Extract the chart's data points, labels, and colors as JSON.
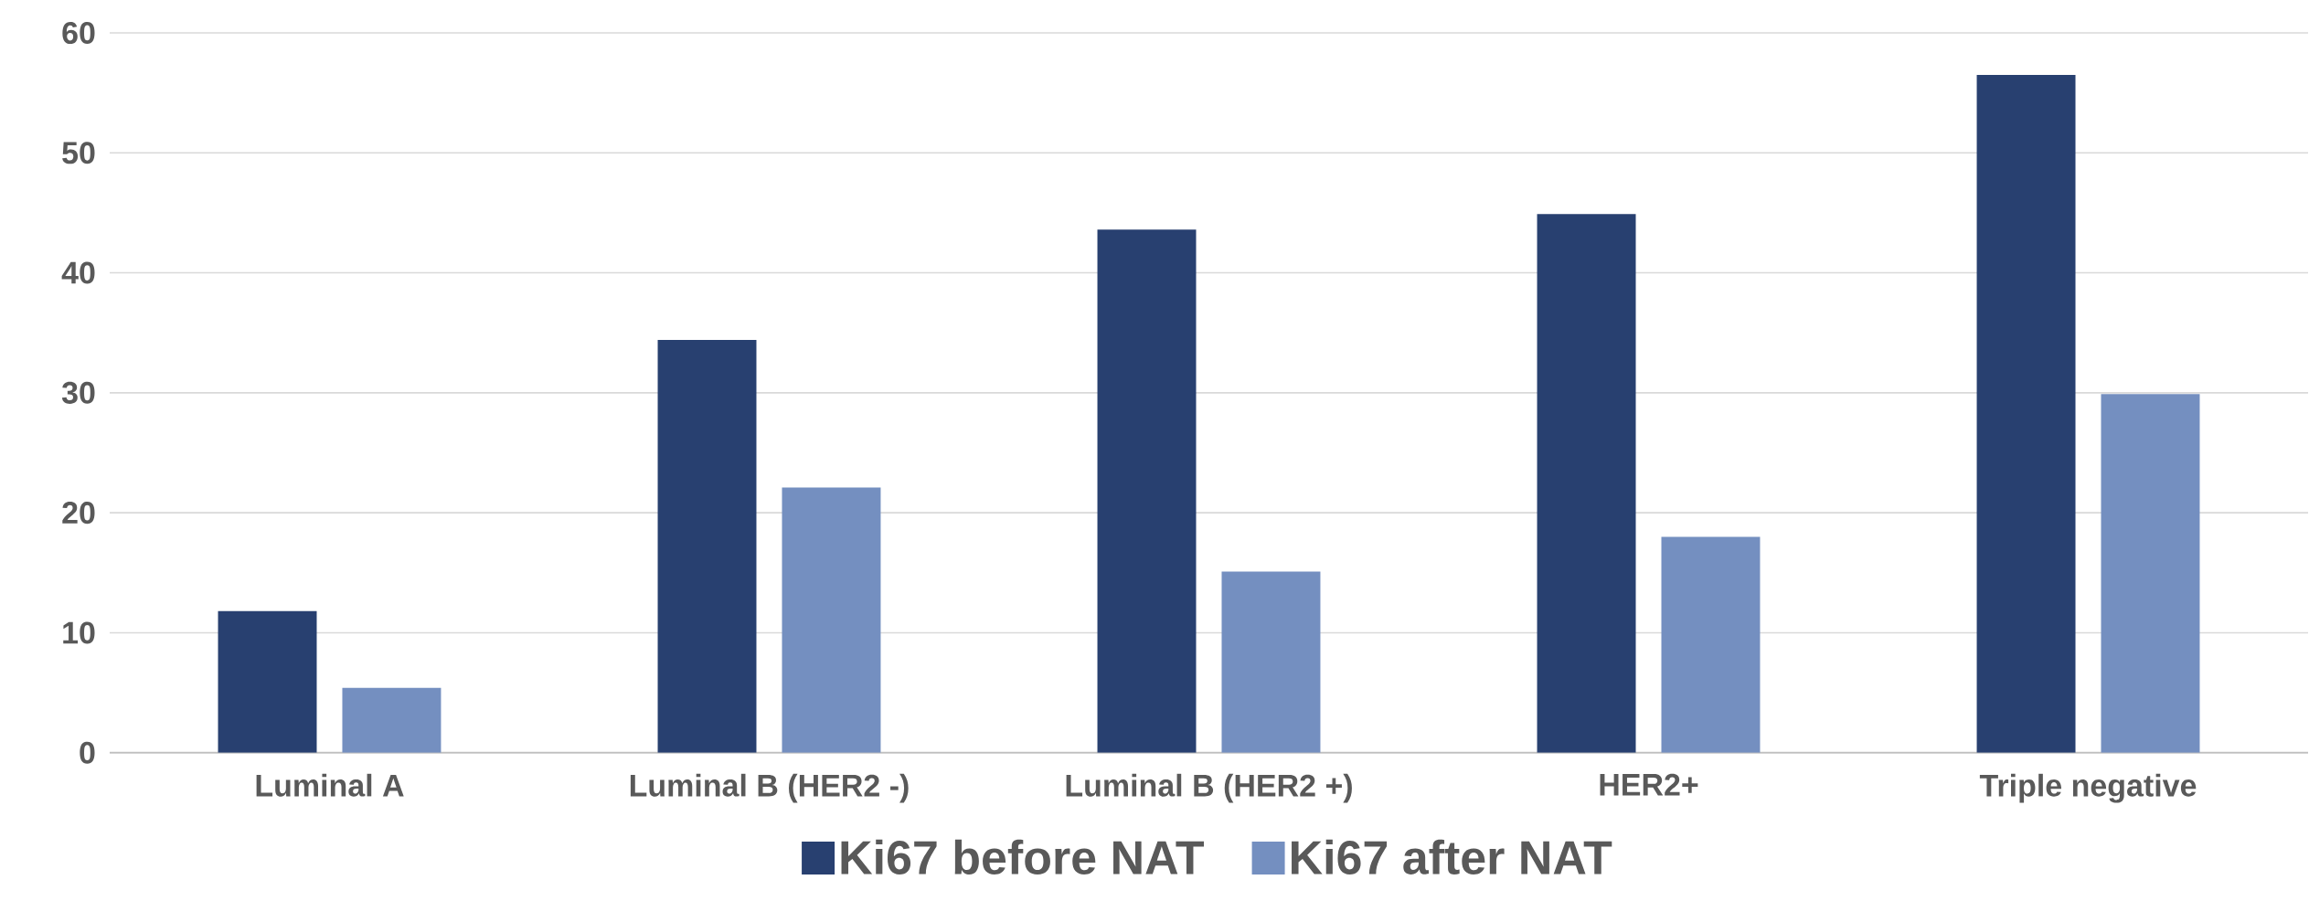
{
  "chart_data": {
    "type": "bar",
    "categories": [
      "Luminal A",
      "Luminal B (HER2 -)",
      "Luminal B (HER2 +)",
      "HER2+",
      "Triple negative"
    ],
    "series": [
      {
        "name": "Ki67 before NAT",
        "color": "#284070",
        "values": [
          11.8,
          34.4,
          43.6,
          44.9,
          56.5
        ]
      },
      {
        "name": "Ki67 after NAT",
        "color": "#748fc0",
        "values": [
          5.4,
          22.1,
          15.1,
          18.0,
          29.9
        ]
      }
    ],
    "ylim": [
      0,
      60
    ],
    "yticks": [
      0,
      10,
      20,
      30,
      40,
      50,
      60
    ],
    "grid": "y",
    "legend": "bottom"
  }
}
